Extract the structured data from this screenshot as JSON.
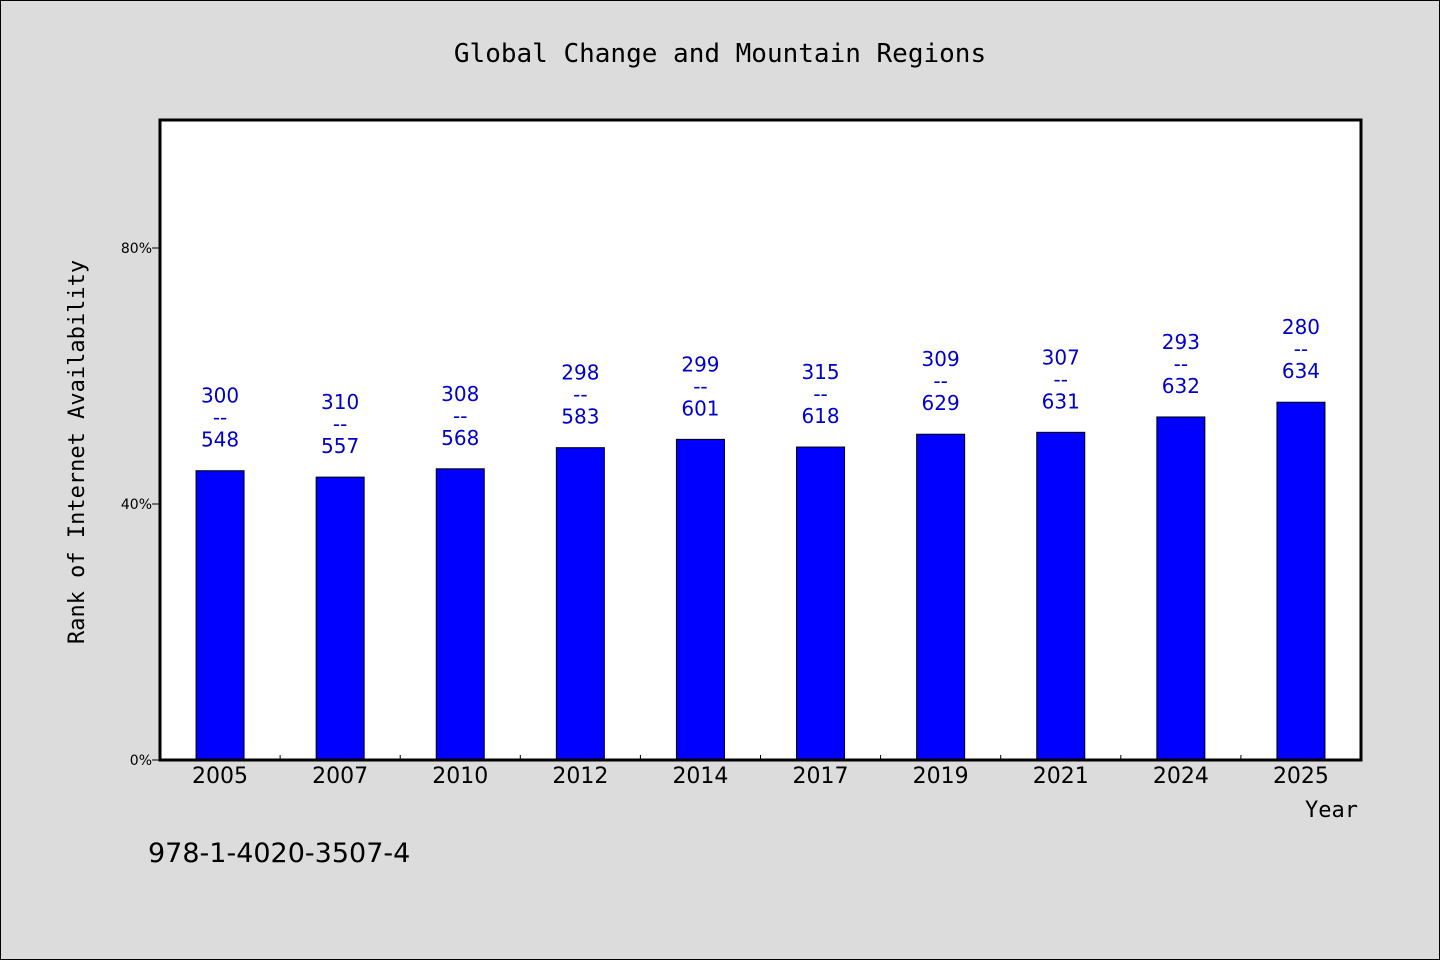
{
  "chart_data": {
    "type": "bar",
    "title": "Global Change and Mountain Regions",
    "xlabel": "Year",
    "ylabel": "Rank of Internet Availability",
    "categories": [
      "2005",
      "2007",
      "2010",
      "2012",
      "2014",
      "2017",
      "2019",
      "2021",
      "2024",
      "2025"
    ],
    "values": [
      45.2,
      44.2,
      45.5,
      48.8,
      50.1,
      48.9,
      50.9,
      51.2,
      53.6,
      55.9
    ],
    "ylim": [
      0,
      100
    ],
    "yticks": [
      0,
      40,
      80
    ],
    "ytick_labels": [
      "0%",
      "40%",
      "80%"
    ],
    "bar_labels": [
      {
        "top": "300",
        "sep": "--",
        "bottom": "548"
      },
      {
        "top": "310",
        "sep": "--",
        "bottom": "557"
      },
      {
        "top": "308",
        "sep": "--",
        "bottom": "568"
      },
      {
        "top": "298",
        "sep": "--",
        "bottom": "583"
      },
      {
        "top": "299",
        "sep": "--",
        "bottom": "601"
      },
      {
        "top": "315",
        "sep": "--",
        "bottom": "618"
      },
      {
        "top": "309",
        "sep": "--",
        "bottom": "629"
      },
      {
        "top": "307",
        "sep": "--",
        "bottom": "631"
      },
      {
        "top": "293",
        "sep": "--",
        "bottom": "632"
      },
      {
        "top": "280",
        "sep": "--",
        "bottom": "634"
      }
    ],
    "bar_color": "#0000ff",
    "label_color": "#0000cc",
    "background_color": "#dcdcdc",
    "grid": false,
    "legend": "none"
  },
  "footer": {
    "isbn": "978-1-4020-3507-4"
  }
}
